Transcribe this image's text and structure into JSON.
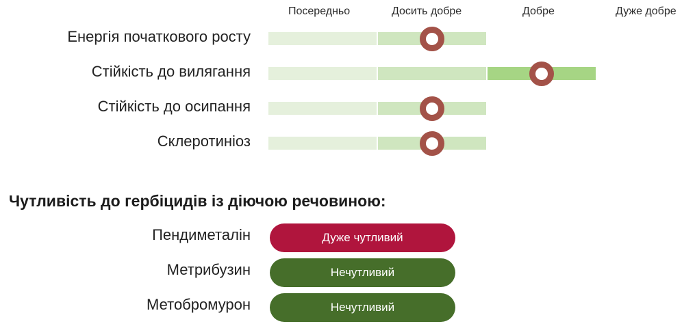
{
  "scale": {
    "levels": [
      "Посередньо",
      "Досить добре",
      "Добре",
      "Дуже добре"
    ]
  },
  "traits": [
    {
      "label": "Енергія початкового росту",
      "rating": "Досить добре"
    },
    {
      "label": "Стійкість до вилягання",
      "rating": "Добре"
    },
    {
      "label": "Стійкість до осипання",
      "rating": "Досить добре"
    },
    {
      "label": "Склеротиніоз",
      "rating": "Досить добре"
    }
  ],
  "herbicides": {
    "title": "Чутливість до гербіцидів із діючою речовиною:",
    "items": [
      {
        "label": "Пендиметалін",
        "value": "Дуже чутливий",
        "color": "#b0153d"
      },
      {
        "label": "Метрибузин",
        "value": "Нечутливий",
        "color": "#466e2a"
      },
      {
        "label": "Метобромурон",
        "value": "Нечутливий",
        "color": "#466e2a"
      }
    ]
  },
  "colors": {
    "segment_1": "#e5f0dc",
    "segment_2": "#cfe6bf",
    "segment_3": "#a6d584",
    "marker": "#a35248"
  }
}
